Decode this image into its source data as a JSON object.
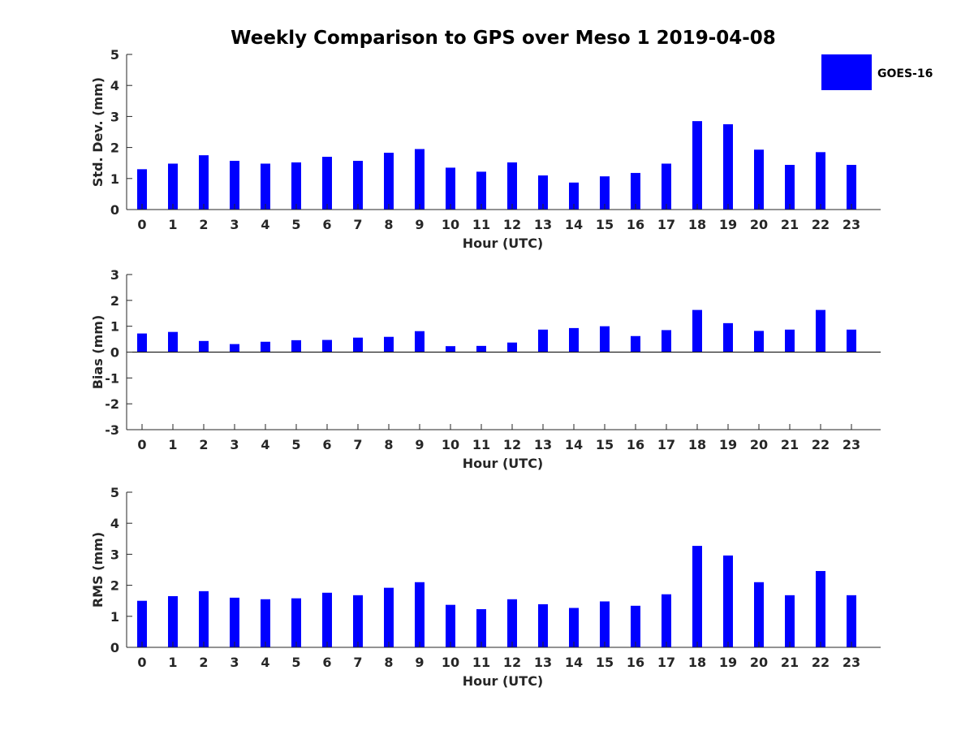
{
  "chart_data": {
    "type": "bar",
    "title": "Weekly Comparison to GPS over Meso 1 2019-04-08",
    "legend": {
      "label": "GOES-16",
      "color": "#0000ff",
      "placement": "top-right"
    },
    "bar_color": "#0000ff",
    "categories": [
      "0",
      "1",
      "2",
      "3",
      "4",
      "5",
      "6",
      "7",
      "8",
      "9",
      "10",
      "11",
      "12",
      "13",
      "14",
      "15",
      "16",
      "17",
      "18",
      "19",
      "20",
      "21",
      "22",
      "23"
    ],
    "panels": [
      {
        "name": "std-dev",
        "ylabel": "Std. Dev. (mm)",
        "xlabel": "Hour (UTC)",
        "ylim": [
          0,
          5
        ],
        "yticks": [
          "0",
          "1",
          "2",
          "3",
          "4",
          "5"
        ],
        "values": [
          1.3,
          1.48,
          1.75,
          1.57,
          1.48,
          1.52,
          1.7,
          1.57,
          1.83,
          1.95,
          1.35,
          1.22,
          1.52,
          1.1,
          0.87,
          1.07,
          1.18,
          1.48,
          2.85,
          2.75,
          1.93,
          1.44,
          1.85,
          1.44
        ]
      },
      {
        "name": "bias",
        "ylabel": "Bias (mm)",
        "xlabel": "Hour (UTC)",
        "ylim": [
          -3,
          3
        ],
        "yticks": [
          "-3",
          "-2",
          "-1",
          "0",
          "1",
          "2",
          "3"
        ],
        "values": [
          0.72,
          0.78,
          0.43,
          0.31,
          0.4,
          0.46,
          0.47,
          0.56,
          0.59,
          0.81,
          0.23,
          0.24,
          0.37,
          0.87,
          0.93,
          1.0,
          0.62,
          0.85,
          1.63,
          1.12,
          0.82,
          0.87,
          1.63,
          0.87
        ]
      },
      {
        "name": "rms",
        "ylabel": "RMS (mm)",
        "xlabel": "Hour (UTC)",
        "ylim": [
          0,
          5
        ],
        "yticks": [
          "0",
          "1",
          "2",
          "3",
          "4",
          "5"
        ],
        "values": [
          1.5,
          1.65,
          1.81,
          1.6,
          1.55,
          1.58,
          1.76,
          1.68,
          1.92,
          2.1,
          1.37,
          1.23,
          1.55,
          1.39,
          1.27,
          1.48,
          1.34,
          1.71,
          3.27,
          2.96,
          2.1,
          1.68,
          2.46,
          1.68
        ]
      }
    ]
  }
}
